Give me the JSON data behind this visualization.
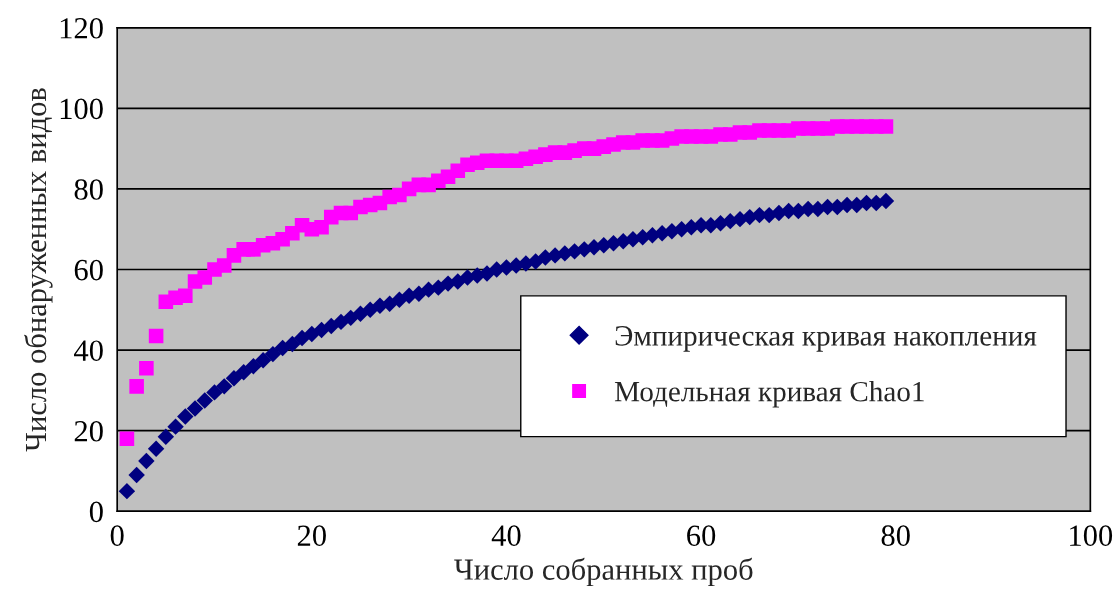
{
  "chart_data": {
    "type": "scatter",
    "xlabel": "Число собранных проб",
    "ylabel": "Число обнаруженных видов",
    "x": [
      1,
      2,
      3,
      4,
      5,
      6,
      7,
      8,
      9,
      10,
      11,
      12,
      13,
      14,
      15,
      16,
      17,
      18,
      19,
      20,
      21,
      22,
      23,
      24,
      25,
      26,
      27,
      28,
      29,
      30,
      31,
      32,
      33,
      34,
      35,
      36,
      37,
      38,
      39,
      40,
      41,
      42,
      43,
      44,
      45,
      46,
      47,
      48,
      49,
      50,
      51,
      52,
      53,
      54,
      55,
      56,
      57,
      58,
      59,
      60,
      61,
      62,
      63,
      64,
      65,
      66,
      67,
      68,
      69,
      70,
      71,
      72,
      73,
      74,
      75,
      76,
      77,
      78,
      79
    ],
    "series": [
      {
        "name": "Эмпирическая кривая накопления",
        "color": "#000080",
        "marker": "diamond",
        "values": [
          5,
          9,
          12.5,
          15.5,
          18.5,
          21,
          23.5,
          25.5,
          27.5,
          29.5,
          31,
          33,
          34.5,
          36,
          37.5,
          39,
          40.5,
          41.5,
          43,
          44,
          45,
          46,
          47,
          48,
          49,
          50,
          51,
          51.5,
          52.5,
          53.5,
          54,
          55,
          55.5,
          56.5,
          57,
          58,
          58.5,
          59,
          60,
          60.5,
          61,
          61.5,
          62,
          63,
          63.5,
          64,
          64.5,
          65,
          65.5,
          66,
          66.5,
          67,
          67.5,
          68,
          68.5,
          69,
          69.5,
          70,
          70.5,
          71,
          71,
          71.5,
          72,
          72.5,
          73,
          73.5,
          73.5,
          74,
          74.5,
          74.5,
          75,
          75,
          75.5,
          75.5,
          76,
          76,
          76.5,
          76.5,
          77
        ]
      },
      {
        "name": "Модельная кривая Chao1",
        "color": "#ff00ff",
        "marker": "square",
        "values": [
          18,
          31,
          35.5,
          43.5,
          52,
          53,
          53.5,
          57,
          58,
          60,
          61,
          63.5,
          65,
          65,
          66,
          66.5,
          67.5,
          69,
          71,
          70,
          70.5,
          73,
          74,
          74,
          75.5,
          76,
          76.5,
          78,
          78.5,
          80,
          81,
          81,
          82,
          83,
          84.5,
          86,
          86.5,
          87,
          87,
          87,
          87,
          87.5,
          88,
          88.5,
          89,
          89,
          89.5,
          90,
          90,
          90.5,
          91,
          91.5,
          91.5,
          92,
          92,
          92,
          92.5,
          93,
          93,
          93,
          93,
          93.5,
          93.5,
          94,
          94,
          94.5,
          94.5,
          94.5,
          94.5,
          95,
          95,
          95,
          95,
          95.5,
          95.5,
          95.5,
          95.5,
          95.5,
          95.5
        ]
      }
    ],
    "xlim": [
      0,
      100
    ],
    "xticks": [
      0,
      20,
      40,
      60,
      80,
      100
    ],
    "ylim": [
      0,
      120
    ],
    "yticks": [
      0,
      20,
      40,
      60,
      80,
      100,
      120
    ],
    "grid": "y",
    "legend": "right"
  }
}
